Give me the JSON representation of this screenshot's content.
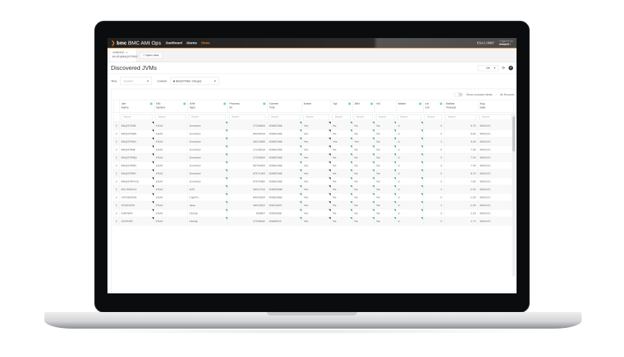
{
  "app": {
    "brand": "bmc",
    "title": "BMC AMI Ops",
    "nav": [
      "Dashboard",
      "Alarms",
      "Views"
    ],
    "active_nav": "Views",
    "system": "ESAJ | 9967",
    "logged_label": "Logged in as",
    "user": "mmayell"
  },
  "tabs": [
    {
      "line1": "JVMDISC",
      "line2": "MVJE@BAQSTRBC",
      "close": "×"
    }
  ],
  "open_view": "Open view",
  "page": {
    "title": "Discovered JVMs",
    "refresh_value": "Off"
  },
  "filters": {
    "time_label": "Time",
    "time_value": "Current",
    "context_label": "Context",
    "context_value": "BAQSTRBC (Target)"
  },
  "toolbar": {
    "show_excluded": "Show excluded fields",
    "records": "36 Records"
  },
  "search_placeholder": "Search",
  "columns": [
    [
      "Job",
      "Name"
    ],
    [
      "SSI",
      "System"
    ],
    [
      "JVM",
      "Type"
    ],
    [
      "Process",
      "ID"
    ],
    [
      "Current",
      "TCB"
    ],
    [
      "Active",
      ""
    ],
    [
      "Tgt",
      ""
    ],
    [
      "JMX",
      ""
    ],
    [
      "HC",
      ""
    ],
    [
      "Watch",
      ""
    ],
    [
      "Lst",
      "Cnt"
    ],
    [
      "NoMax",
      "Threads"
    ],
    [
      "Avg",
      "Date"
    ]
  ],
  "rows": [
    [
      "BAQSTDB2",
      "ESAJ",
      "Zconnect",
      "17236625",
      "006ED368",
      "Yes",
      "No",
      "No",
      "No",
      "U",
      "4",
      "6.70",
      "06/01/21"
    ],
    [
      "BAQSTRBA",
      "ESAJ",
      "Zconnect",
      "84348418",
      "006ED368",
      "Yes",
      "No",
      "No",
      "No",
      "U",
      "2",
      "5.60",
      "06/01/21"
    ],
    [
      "BAQSTKBC",
      "ESAJ",
      "Zconnect",
      "34013636",
      "006ED368",
      "Yes",
      "Yes",
      "Yes",
      "No",
      "U",
      "1",
      "5.40",
      "06/01/21"
    ],
    [
      "BAQSTRBI",
      "ESAJ",
      "Zconnect",
      "17236618",
      "006ED368",
      "Yes",
      "No",
      "No",
      "No",
      "U",
      "4",
      "7.30",
      "06/01/21"
    ],
    [
      "BAQSTRBQ",
      "ESAJ",
      "Zconnect",
      "17239533",
      "006ED368",
      "Yes",
      "No",
      "No",
      "No",
      "U",
      "2",
      "7.20",
      "06/01/21"
    ],
    [
      "BAQSTRBX",
      "ESAJ",
      "Zconnect",
      "50794053",
      "006ED368",
      "Yes",
      "No",
      "No",
      "No",
      "U",
      "3",
      "7.40",
      "06/01/21"
    ],
    [
      "BAQSTRBY",
      "ESAJ",
      "Zconnect",
      "67571263",
      "006ED368",
      "Yes",
      "No",
      "No",
      "No",
      "U",
      "2",
      "8.70",
      "06/01/21"
    ],
    [
      "BAQSTRVVQ",
      "ESAJ",
      "Zconnect",
      "67570382",
      "006ED368",
      "Yes",
      "No",
      "No",
      "No",
      "U",
      "2",
      "7.60",
      "06/01/21"
    ],
    [
      "BCLS8VIUX",
      "ESAJ",
      "zOS",
      "34014744",
      "006ED588",
      "Yes",
      "No",
      "No",
      "No",
      "U",
      "1",
      "-1.00",
      "06/01/21"
    ],
    [
      "CPOSERVE",
      "ESAJ",
      "CapPro",
      "84345264",
      "006EE588",
      "Yes",
      "No",
      "No",
      "No",
      "U",
      "0",
      "-1.00",
      "06/01/21"
    ],
    [
      "IOAZDATA",
      "ESAJ",
      "Java",
      "34013612",
      "006C8420",
      "Yes",
      "No",
      "No",
      "No",
      "U",
      "1",
      "-1.00",
      "06/01/21"
    ],
    [
      "IVAVSRV",
      "ESAJ",
      "Liberty",
      "456807",
      "006F8368",
      "Yes",
      "No",
      "No",
      "No",
      "U",
      "3",
      "1.24",
      "06/01/21"
    ],
    [
      "IZUSVR1",
      "ESAJ",
      "Liberty",
      "17236040",
      "00683210",
      "Yes",
      "No",
      "No",
      "No",
      "U",
      "2",
      "1.71",
      "06/01/21"
    ]
  ],
  "colors": {
    "accent": "#f07f1e",
    "header_bg": "#222222",
    "flag": "#33aa99"
  }
}
